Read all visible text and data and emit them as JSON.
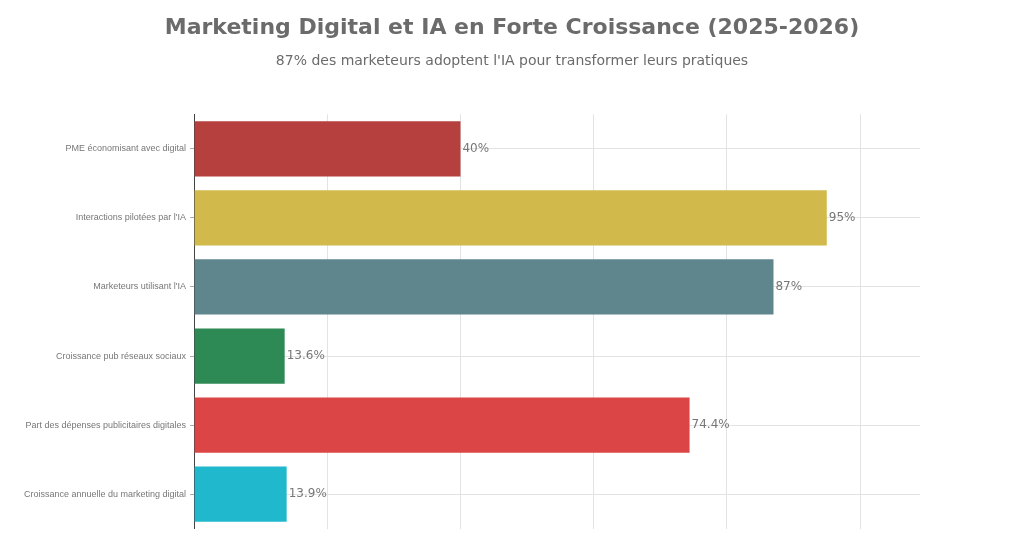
{
  "chart_data": {
    "type": "bar",
    "orientation": "horizontal",
    "title": "Marketing Digital et IA en Forte Croissance (2025-2026)",
    "subtitle": "87% des marketeurs adoptent l'IA pour transformer leurs pratiques",
    "categories": [
      "PME économisant avec digital",
      "Interactions pilotées par l'IA",
      "Marketeurs utilisant l'IA",
      "Croissance pub réseaux sociaux",
      "Part des dépenses publicitaires digitales",
      "Croissance annuelle du marketing digital"
    ],
    "values": [
      40,
      95,
      87,
      13.6,
      74.4,
      13.9
    ],
    "value_labels": [
      "40%",
      "95%",
      "87%",
      "13.6%",
      "74.4%",
      "13.9%"
    ],
    "colors": [
      "#b5403d",
      "#d1b94c",
      "#5e868c",
      "#2e8a55",
      "#db4545",
      "#20b8cc"
    ],
    "xlim": [
      0,
      109
    ],
    "xticks": [
      {
        "value": 0,
        "label": null
      },
      {
        "value": 20,
        "label": null
      },
      {
        "value": 40,
        "label": null
      },
      {
        "value": 60,
        "label": null
      },
      {
        "value": 80,
        "label": null
      },
      {
        "value": 100,
        "label": null
      }
    ],
    "tick_labels": "y",
    "grid": true,
    "legend": false
  }
}
